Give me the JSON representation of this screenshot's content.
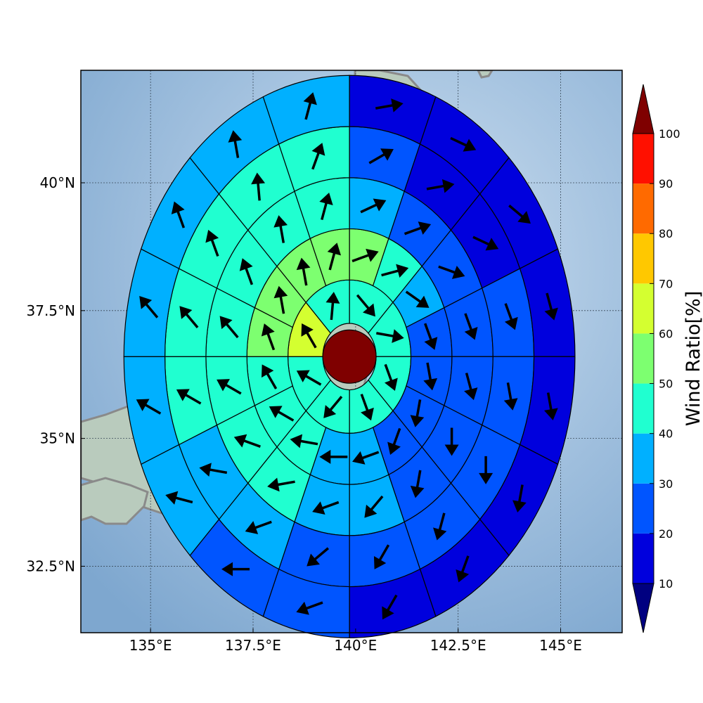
{
  "map": {
    "lon_range": [
      133.3,
      146.5
    ],
    "lat_range": [
      31.2,
      42.2
    ],
    "center": {
      "lon": 139.85,
      "lat": 36.6
    },
    "ring_radii_deg": [
      0.65,
      1.5,
      2.5,
      3.5,
      4.5,
      5.5
    ],
    "sectors_per_ring": [
      8,
      16,
      16,
      16,
      16
    ],
    "x_ticks": [
      {
        "value": 135,
        "label": "135°E"
      },
      {
        "value": 137.5,
        "label": "137.5°E"
      },
      {
        "value": 140,
        "label": "140°E"
      },
      {
        "value": 142.5,
        "label": "142.5°E"
      },
      {
        "value": 145,
        "label": "145°E"
      }
    ],
    "y_ticks": [
      {
        "value": 32.5,
        "label": "32.5°N"
      },
      {
        "value": 35,
        "label": "35°N"
      },
      {
        "value": 37.5,
        "label": "37.5°N"
      },
      {
        "value": 40,
        "label": "40°N"
      }
    ],
    "colors": {
      "ocean": "#8db3d6",
      "ocean_light": "#cfe0f0",
      "land": "#b4c7b8",
      "coast": "#8a8a8a",
      "grid": "#3a4a5a",
      "center": "#7f0000",
      "arrow": "#000000"
    },
    "ring_values": [
      {
        "ring": 1,
        "values": [
          40,
          40,
          40,
          40,
          40,
          40,
          60,
          40
        ]
      },
      {
        "ring": 2,
        "values": [
          50,
          40,
          30,
          20,
          20,
          20,
          20,
          30,
          30,
          40,
          40,
          40,
          50,
          50,
          50,
          50
        ]
      },
      {
        "ring": 3,
        "values": [
          30,
          20,
          20,
          20,
          20,
          20,
          20,
          30,
          30,
          40,
          40,
          40,
          40,
          40,
          40,
          40
        ]
      },
      {
        "ring": 4,
        "values": [
          20,
          10,
          10,
          20,
          20,
          20,
          20,
          20,
          20,
          30,
          30,
          40,
          40,
          40,
          40,
          40
        ]
      },
      {
        "ring": 5,
        "values": [
          10,
          10,
          10,
          10,
          10,
          10,
          10,
          10,
          20,
          20,
          30,
          30,
          30,
          30,
          30,
          30
        ]
      }
    ],
    "ring_directions_deg": [
      {
        "ring": 1,
        "dirs": [
          140,
          100,
          160,
          160,
          220,
          300,
          330,
          5
        ]
      },
      {
        "ring": 2,
        "dirs": [
          70,
          75,
          125,
          160,
          170,
          190,
          200,
          250,
          270,
          280,
          300,
          330,
          340,
          350,
          350,
          15
        ]
      },
      {
        "ring": 3,
        "dirs": [
          65,
          70,
          110,
          160,
          165,
          180,
          190,
          220,
          250,
          260,
          290,
          300,
          320,
          340,
          350,
          15
        ]
      },
      {
        "ring": 4,
        "dirs": [
          60,
          80,
          115,
          160,
          170,
          180,
          195,
          210,
          230,
          250,
          280,
          300,
          320,
          340,
          355,
          20
        ]
      },
      {
        "ring": 5,
        "dirs": [
          80,
          115,
          130,
          165,
          170,
          190,
          200,
          210,
          250,
          270,
          285,
          300,
          320,
          340,
          350,
          15
        ]
      }
    ]
  },
  "colorbar": {
    "label": "Wind Ratio[%]",
    "levels": [
      10,
      20,
      30,
      40,
      50,
      60,
      70,
      80,
      90,
      100
    ],
    "tick_labels": [
      "10",
      "20",
      "30",
      "40",
      "50",
      "60",
      "70",
      "80",
      "90",
      "100"
    ],
    "colors": [
      "#0000dd",
      "#0055ff",
      "#00b0ff",
      "#20ffd0",
      "#7dff70",
      "#d4ff30",
      "#ffc800",
      "#ff6a00",
      "#ff1000"
    ],
    "under_color": "#000080",
    "over_color": "#7f0000"
  }
}
